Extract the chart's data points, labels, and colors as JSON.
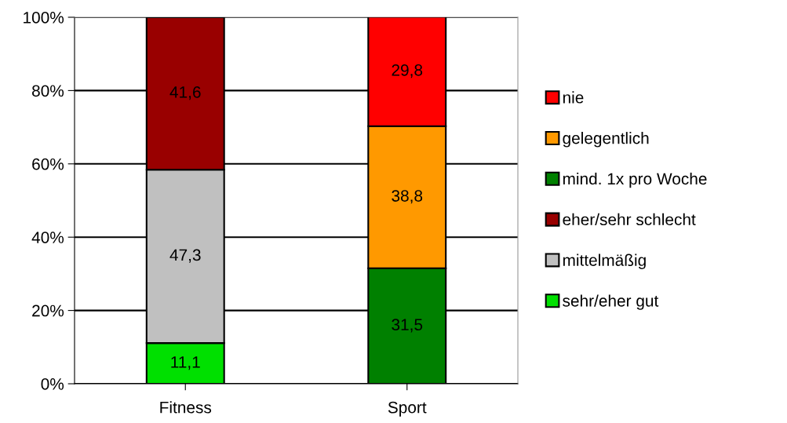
{
  "chart_data": {
    "type": "bar",
    "stacked": true,
    "categories": [
      "Fitness",
      "Sport"
    ],
    "series": [
      {
        "name": "sehr/eher gut",
        "color": "#00e000",
        "values": [
          11.1,
          null
        ],
        "value_labels": [
          "11,1",
          null
        ]
      },
      {
        "name": "mittelmäßig",
        "color": "#c0c0c0",
        "values": [
          47.3,
          null
        ],
        "value_labels": [
          "47,3",
          null
        ]
      },
      {
        "name": "eher/sehr schlecht",
        "color": "#990000",
        "values": [
          41.6,
          null
        ],
        "value_labels": [
          "41,6",
          null
        ]
      },
      {
        "name": "mind. 1x pro Woche",
        "color": "#008000",
        "values": [
          null,
          31.5
        ],
        "value_labels": [
          null,
          "31,5"
        ]
      },
      {
        "name": "gelegentlich",
        "color": "#ff9900",
        "values": [
          null,
          38.8
        ],
        "value_labels": [
          null,
          "38,8"
        ]
      },
      {
        "name": "nie",
        "color": "#ff0000",
        "values": [
          null,
          29.8
        ],
        "value_labels": [
          null,
          "29,8"
        ]
      }
    ],
    "ylim": [
      0,
      100
    ],
    "yticks": [
      {
        "value": 0,
        "label": "0%"
      },
      {
        "value": 20,
        "label": "20%"
      },
      {
        "value": 40,
        "label": "40%"
      },
      {
        "value": 60,
        "label": "60%"
      },
      {
        "value": 80,
        "label": "80%"
      },
      {
        "value": 100,
        "label": "100%"
      }
    ],
    "grid": "y",
    "legend": "right"
  }
}
